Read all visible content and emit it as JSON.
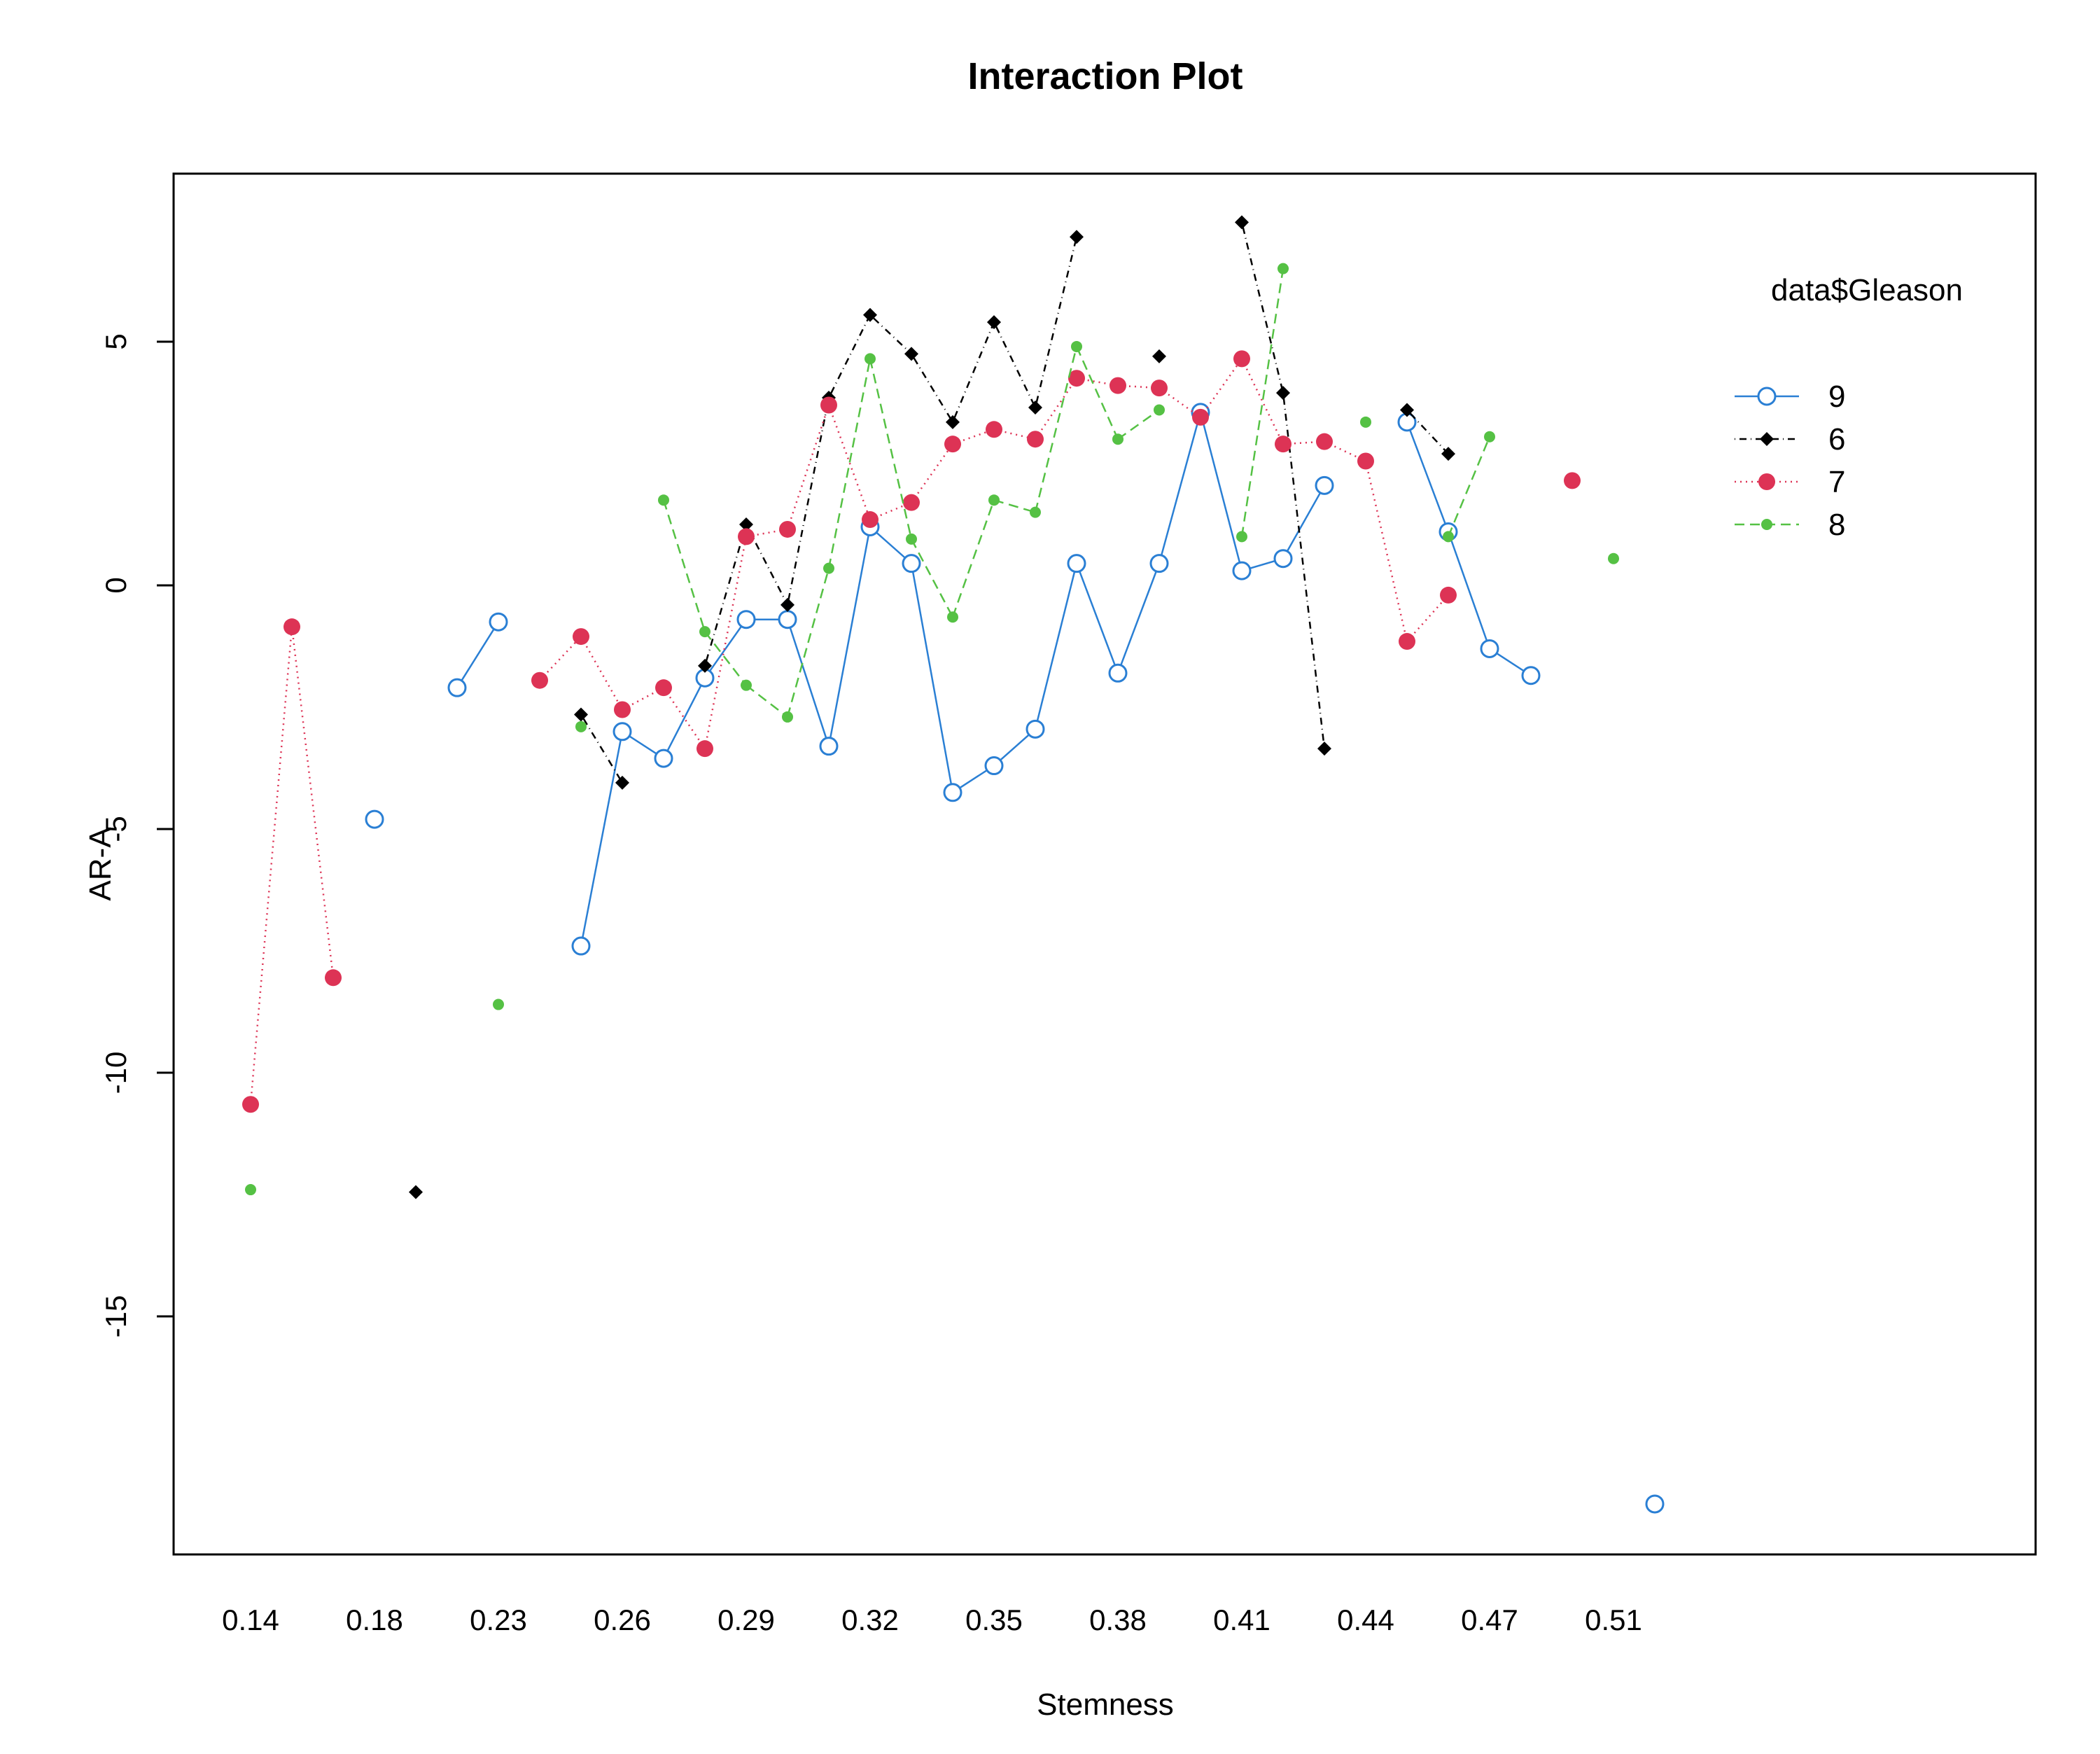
{
  "chart_data": {
    "type": "line",
    "title": "Interaction Plot",
    "xlabel": "Stemness",
    "ylabel": "AR-A",
    "categories": [
      "0.14",
      "0.15",
      "0.16",
      "0.18",
      "0.19",
      "0.21",
      "0.23",
      "0.24",
      "0.25",
      "0.26",
      "0.27",
      "0.28",
      "0.29",
      "0.30",
      "0.31",
      "0.32",
      "0.33",
      "0.34",
      "0.35",
      "0.36",
      "0.37",
      "0.38",
      "0.39",
      "0.40",
      "0.41",
      "0.42",
      "0.43",
      "0.44",
      "0.45",
      "0.46",
      "0.47",
      "0.48",
      "0.50",
      "0.51",
      "0.52"
    ],
    "tick_labels": [
      "0.14",
      "0.18",
      "0.23",
      "0.26",
      "0.29",
      "0.32",
      "0.35",
      "0.38",
      "0.41",
      "0.44",
      "0.47",
      "0.51"
    ],
    "tick_indices": [
      0,
      3,
      6,
      9,
      12,
      15,
      18,
      21,
      24,
      27,
      30,
      33
    ],
    "ylim": [
      -19,
      8.5
    ],
    "y_ticks": [
      5,
      0,
      -5,
      -10,
      -15
    ],
    "legend": {
      "title": "data$Gleason",
      "position": "top-right",
      "entries": [
        "9",
        "6",
        "7",
        "8"
      ]
    },
    "grid": false,
    "series": [
      {
        "name": "9",
        "color": "#2a7fd4",
        "dash": "",
        "marker": "open-circle",
        "values": [
          null,
          null,
          null,
          -4.8,
          null,
          -2.1,
          -0.75,
          null,
          -7.4,
          -3.0,
          -3.55,
          -1.9,
          -0.7,
          -0.7,
          -3.3,
          1.2,
          0.45,
          -4.25,
          -3.7,
          -2.95,
          0.45,
          -1.8,
          0.45,
          3.55,
          0.3,
          0.55,
          2.05,
          null,
          3.35,
          1.1,
          -1.3,
          -1.85,
          null,
          null,
          -18.85
        ]
      },
      {
        "name": "6",
        "color": "#000000",
        "dash": "1,6,10,6",
        "marker": "diamond",
        "values": [
          null,
          null,
          null,
          null,
          -12.45,
          null,
          null,
          null,
          -2.65,
          -4.05,
          null,
          -1.65,
          1.25,
          -0.4,
          3.85,
          5.55,
          4.75,
          3.35,
          5.4,
          3.65,
          7.15,
          null,
          4.7,
          null,
          7.45,
          3.95,
          -3.35,
          null,
          3.6,
          2.7,
          null,
          null,
          null,
          null,
          null
        ]
      },
      {
        "name": "7",
        "color": "#dd3355",
        "dash": "2,6",
        "marker": "filled-circle",
        "values": [
          -10.65,
          -0.85,
          -8.05,
          null,
          null,
          null,
          null,
          -1.95,
          -1.05,
          -2.55,
          -2.1,
          -3.35,
          1.0,
          1.15,
          3.7,
          1.35,
          1.7,
          2.9,
          3.2,
          3.0,
          4.25,
          4.1,
          4.05,
          3.45,
          4.65,
          2.9,
          2.95,
          2.55,
          -1.15,
          -0.2,
          null,
          null,
          2.15,
          null,
          null
        ]
      },
      {
        "name": "8",
        "color": "#55c144",
        "dash": "14,8",
        "marker": "small-dot",
        "values": [
          -12.4,
          null,
          null,
          null,
          null,
          null,
          -8.6,
          null,
          -2.9,
          null,
          1.75,
          -0.95,
          -2.05,
          -2.7,
          0.35,
          4.65,
          0.95,
          -0.65,
          1.75,
          1.5,
          4.9,
          3.0,
          3.6,
          null,
          1.0,
          6.5,
          null,
          3.35,
          null,
          1.0,
          3.05,
          null,
          null,
          0.55,
          null
        ]
      }
    ]
  }
}
